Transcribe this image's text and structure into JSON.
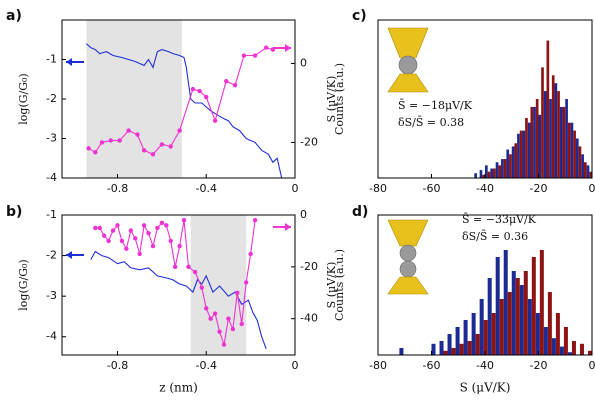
{
  "chart_data": [
    {
      "type": "line",
      "label": "a)",
      "ylabel": "log(G/G₀)",
      "y2label": "S (μV/K)",
      "xlim": [
        -1.05,
        0
      ],
      "xticks": [
        -0.8,
        -0.4,
        0
      ],
      "ylim": [
        -4,
        0
      ],
      "yticks": [
        -4,
        -3,
        -2,
        -1
      ],
      "y2lim": [
        -29,
        11
      ],
      "y2ticks": [
        -20,
        0
      ],
      "shaded_region": [
        -0.94,
        -0.51
      ],
      "series": [
        {
          "color": "#1f2fd6",
          "axis": "y",
          "markers": false,
          "x": [
            -0.94,
            -0.92,
            -0.9,
            -0.88,
            -0.85,
            -0.82,
            -0.78,
            -0.75,
            -0.72,
            -0.7,
            -0.68,
            -0.66,
            -0.64,
            -0.62,
            -0.6,
            -0.57,
            -0.55,
            -0.52,
            -0.5,
            -0.49,
            -0.47,
            -0.45,
            -0.42,
            -0.4,
            -0.38,
            -0.35,
            -0.32,
            -0.3,
            -0.28,
            -0.25,
            -0.22,
            -0.2,
            -0.18,
            -0.15,
            -0.12,
            -0.1,
            -0.08,
            -0.06
          ],
          "values": [
            -0.6,
            -0.7,
            -0.75,
            -0.85,
            -0.8,
            -0.9,
            -0.95,
            -1.0,
            -1.05,
            -1.1,
            -1.15,
            -1.0,
            -1.2,
            -0.8,
            -0.75,
            -0.8,
            -0.85,
            -0.9,
            -0.95,
            -1.2,
            -2.0,
            -2.1,
            -2.1,
            -2.2,
            -2.3,
            -2.4,
            -2.5,
            -2.55,
            -2.7,
            -2.8,
            -3.0,
            -3.05,
            -3.1,
            -3.3,
            -3.4,
            -3.6,
            -3.5,
            -4.0
          ]
        },
        {
          "color": "#f032d2",
          "axis": "y2",
          "markers": true,
          "x": [
            -0.93,
            -0.9,
            -0.87,
            -0.83,
            -0.79,
            -0.75,
            -0.71,
            -0.68,
            -0.64,
            -0.6,
            -0.56,
            -0.52,
            -0.46,
            -0.43,
            -0.4,
            -0.36,
            -0.31,
            -0.27,
            -0.23,
            -0.18,
            -0.13,
            -0.1
          ],
          "values": [
            -21.5,
            -22.5,
            -20,
            -19.5,
            -19.5,
            -17,
            -18,
            -22,
            -23,
            -20.5,
            -21,
            -17,
            -6.5,
            -7,
            -8.5,
            -14.5,
            -4.5,
            -5.5,
            2,
            2,
            4,
            3.5
          ]
        }
      ]
    },
    {
      "type": "line",
      "label": "b)",
      "ylabel": "log(G/G₀)",
      "y2label": "S (μV/K)",
      "xlabel": "z (nm)",
      "xlim": [
        -1.05,
        0
      ],
      "xticks": [
        -0.8,
        -0.4,
        0
      ],
      "ylim": [
        -4.45,
        -1
      ],
      "yticks": [
        -4,
        -3,
        -2,
        -1
      ],
      "y2lim": [
        -54,
        0
      ],
      "y2ticks": [
        -40,
        -20,
        0
      ],
      "shaded_region": [
        -0.47,
        -0.22
      ],
      "series": [
        {
          "color": "#1f2fd6",
          "axis": "y",
          "markers": false,
          "x": [
            -0.92,
            -0.9,
            -0.87,
            -0.84,
            -0.8,
            -0.77,
            -0.74,
            -0.7,
            -0.66,
            -0.62,
            -0.58,
            -0.55,
            -0.52,
            -0.49,
            -0.46,
            -0.44,
            -0.42,
            -0.4,
            -0.37,
            -0.34,
            -0.3,
            -0.27,
            -0.24,
            -0.21,
            -0.19,
            -0.17,
            -0.15,
            -0.13
          ],
          "values": [
            -2.1,
            -1.9,
            -2.0,
            -2.05,
            -2.2,
            -2.15,
            -2.3,
            -2.35,
            -2.3,
            -2.5,
            -2.55,
            -2.6,
            -2.7,
            -2.75,
            -2.9,
            -2.6,
            -2.7,
            -2.5,
            -2.9,
            -2.75,
            -3.0,
            -2.9,
            -3.2,
            -3.1,
            -3.4,
            -3.6,
            -4.0,
            -4.3
          ]
        },
        {
          "color": "#f032d2",
          "axis": "y2",
          "markers": true,
          "x": [
            -0.9,
            -0.88,
            -0.86,
            -0.84,
            -0.82,
            -0.8,
            -0.78,
            -0.76,
            -0.74,
            -0.72,
            -0.7,
            -0.68,
            -0.66,
            -0.64,
            -0.62,
            -0.6,
            -0.58,
            -0.56,
            -0.54,
            -0.52,
            -0.5,
            -0.48,
            -0.45,
            -0.42,
            -0.4,
            -0.38,
            -0.36,
            -0.34,
            -0.32,
            -0.3,
            -0.28,
            -0.26,
            -0.24,
            -0.22,
            -0.2,
            -0.18
          ],
          "values": [
            -5,
            -5,
            -8,
            -10,
            -6,
            -4,
            -10,
            -13,
            -6,
            -9,
            -15,
            -4,
            -7,
            -12,
            -5,
            -3,
            -4,
            -10,
            -20,
            -12,
            -2,
            -20,
            -22,
            -28,
            -36,
            -40,
            -38,
            -45,
            -50,
            -40,
            -44,
            -30,
            -42,
            -26,
            -15,
            -2
          ]
        }
      ]
    },
    {
      "type": "histogram",
      "label": "c)",
      "ylabel": "Counts (a.u.)",
      "annotations": [
        "S̄ = −18μV/K",
        "δS/S̄ = 0.38"
      ],
      "xlim": [
        -80,
        0
      ],
      "xticks": [
        -80,
        -60,
        -40,
        -20,
        0
      ],
      "ylim": [
        0,
        100
      ],
      "bins": [
        -44,
        -42,
        -40,
        -38,
        -36,
        -34,
        -32,
        -30,
        -28,
        -26,
        -24,
        -22,
        -20,
        -18,
        -16,
        -14,
        -12,
        -10,
        -8,
        -6,
        -4,
        -2,
        0
      ],
      "series": [
        {
          "color": "#1c2a94",
          "values": [
            3,
            5,
            8,
            6,
            10,
            12,
            18,
            20,
            28,
            30,
            35,
            45,
            40,
            55,
            50,
            60,
            45,
            50,
            35,
            25,
            15,
            8
          ]
        },
        {
          "color": "#8c1414",
          "values": [
            0,
            2,
            4,
            6,
            8,
            12,
            15,
            22,
            30,
            38,
            45,
            50,
            70,
            87,
            65,
            55,
            45,
            35,
            30,
            20,
            10,
            4
          ]
        }
      ]
    },
    {
      "type": "histogram",
      "label": "d)",
      "ylabel": "Counts (a.u.)",
      "xlabel": "S (μV/K)",
      "annotations": [
        "S̄ = −33μV/K",
        "δS/S̄ = 0.36"
      ],
      "xlim": [
        -80,
        0
      ],
      "xticks": [
        -80,
        -60,
        -40,
        -20,
        0
      ],
      "ylim": [
        0,
        100
      ],
      "bins": [
        -72,
        -69,
        -66,
        -63,
        -60,
        -57,
        -54,
        -51,
        -48,
        -45,
        -42,
        -39,
        -36,
        -33,
        -30,
        -27,
        -24,
        -21,
        -18,
        -15,
        -12,
        -9,
        -6,
        -3,
        0
      ],
      "series": [
        {
          "color": "#1c2a94",
          "values": [
            5,
            0,
            0,
            0,
            8,
            10,
            15,
            20,
            25,
            30,
            40,
            55,
            70,
            75,
            60,
            50,
            40,
            30,
            20,
            12,
            6,
            2,
            0,
            0
          ]
        },
        {
          "color": "#8c1414",
          "values": [
            0,
            0,
            0,
            0,
            0,
            3,
            5,
            8,
            10,
            15,
            25,
            30,
            40,
            45,
            55,
            60,
            70,
            75,
            45,
            30,
            20,
            10,
            8,
            3
          ]
        }
      ]
    }
  ]
}
